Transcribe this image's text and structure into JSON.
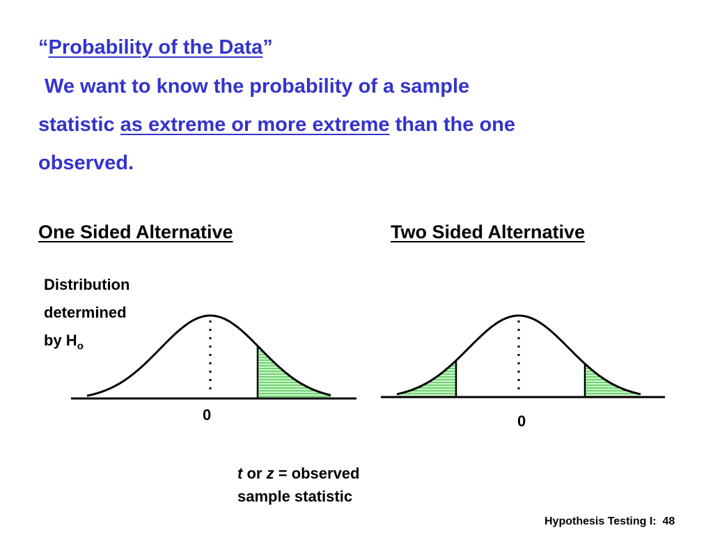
{
  "title": {
    "open_quote": "“",
    "text": "Probability of the Data",
    "close_quote": "”"
  },
  "body": {
    "line1": "We want to know the probability of a sample",
    "line2_start": "statistic",
    "emphasis": "as extreme or more extreme",
    "line2_end": "than the one",
    "line3": "observed."
  },
  "headings": {
    "left": "One Sided Alternative",
    "right": "Two Sided Alternative"
  },
  "distribution_label": {
    "line1": "Distribution",
    "line2": "determined",
    "line3": "by H",
    "subscript": "o"
  },
  "axis_labels": {
    "left_zero": "0",
    "right_zero": "0"
  },
  "caption": {
    "t": "t",
    "or": "or",
    "z": "z",
    "observed": "= observed",
    "line2": "sample statistic"
  },
  "footer": {
    "label": "Hypothesis Testing I:",
    "page": "48"
  }
}
